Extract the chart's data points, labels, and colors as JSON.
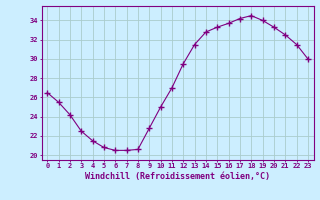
{
  "x": [
    0,
    1,
    2,
    3,
    4,
    5,
    6,
    7,
    8,
    9,
    10,
    11,
    12,
    13,
    14,
    15,
    16,
    17,
    18,
    19,
    20,
    21,
    22,
    23
  ],
  "y": [
    26.5,
    25.5,
    24.2,
    22.5,
    21.5,
    20.8,
    20.5,
    20.5,
    20.6,
    22.8,
    25.0,
    27.0,
    29.5,
    31.5,
    32.8,
    33.3,
    33.7,
    34.2,
    34.5,
    34.0,
    33.3,
    32.5,
    31.5,
    30.0
  ],
  "line_color": "#800080",
  "marker": "+",
  "marker_size": 4,
  "bg_color": "#cceeff",
  "grid_color": "#aacccc",
  "xlabel": "Windchill (Refroidissement éolien,°C)",
  "xlabel_color": "#800080",
  "tick_color": "#800080",
  "spine_color": "#800080",
  "ylim": [
    19.5,
    35.5
  ],
  "xlim": [
    -0.5,
    23.5
  ],
  "yticks": [
    20,
    22,
    24,
    26,
    28,
    30,
    32,
    34
  ],
  "xticks": [
    0,
    1,
    2,
    3,
    4,
    5,
    6,
    7,
    8,
    9,
    10,
    11,
    12,
    13,
    14,
    15,
    16,
    17,
    18,
    19,
    20,
    21,
    22,
    23
  ],
  "xtick_labels": [
    "0",
    "1",
    "2",
    "3",
    "4",
    "5",
    "6",
    "7",
    "8",
    "9",
    "10",
    "11",
    "12",
    "13",
    "14",
    "15",
    "16",
    "17",
    "18",
    "19",
    "20",
    "21",
    "22",
    "23"
  ],
  "font_family": "monospace",
  "tick_fontsize": 5,
  "xlabel_fontsize": 6,
  "linewidth": 0.8
}
